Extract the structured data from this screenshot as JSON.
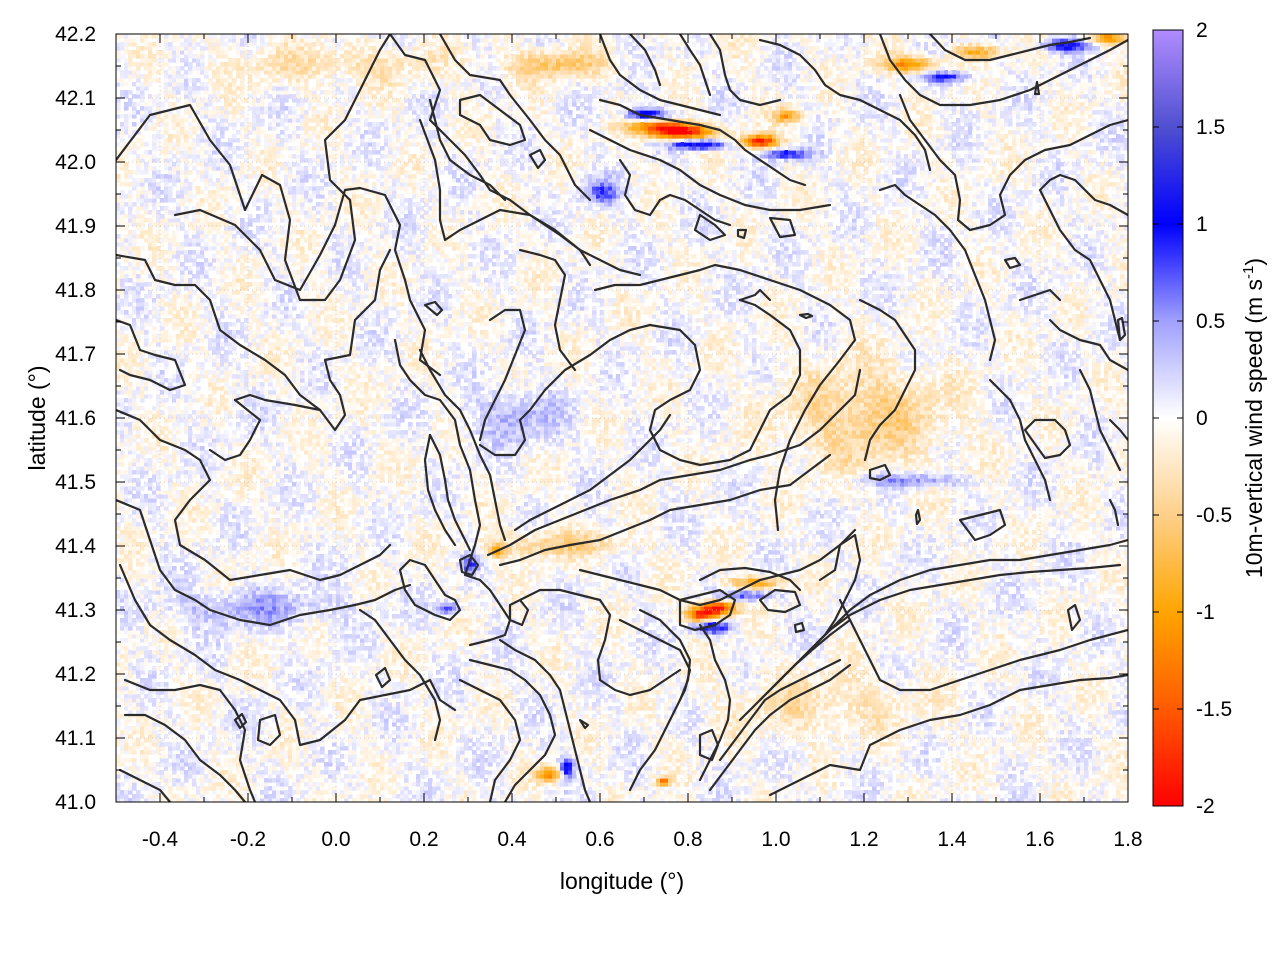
{
  "chart_data": {
    "type": "heatmap",
    "title": "",
    "xlabel": "longitude (°)",
    "ylabel": "latitude (°)",
    "colorbar_label": "10m-vertical wind speed (m s",
    "colorbar_label_sup": "-1",
    "colorbar_label_end": ")",
    "xlim": [
      -0.5,
      1.8
    ],
    "ylim": [
      41.0,
      42.2
    ],
    "clim": [
      -2,
      2
    ],
    "x_ticks": [
      -0.4,
      -0.2,
      0.0,
      0.2,
      0.4,
      0.6,
      0.8,
      1.0,
      1.2,
      1.4,
      1.6,
      1.8
    ],
    "x_tick_labels": [
      "-0.4",
      "-0.2",
      "0.0",
      "0.2",
      "0.4",
      "0.6",
      "0.8",
      "1.0",
      "1.2",
      "1.4",
      "1.6",
      "1.8"
    ],
    "y_ticks": [
      41.0,
      41.1,
      41.2,
      41.3,
      41.4,
      41.5,
      41.6,
      41.7,
      41.8,
      41.9,
      42.0,
      42.1,
      42.2
    ],
    "y_tick_labels": [
      "41.0",
      "41.1",
      "41.2",
      "41.3",
      "41.4",
      "41.5",
      "41.6",
      "41.7",
      "41.8",
      "41.9",
      "42.0",
      "42.1",
      "42.2"
    ],
    "colorbar_ticks": [
      -2,
      -1.5,
      -1,
      -0.5,
      0,
      0.5,
      1,
      1.5,
      2
    ],
    "colorbar_tick_labels": [
      "-2",
      "-1.5",
      "-1",
      "-0.5",
      "0",
      "0.5",
      "1",
      "1.5",
      "2"
    ],
    "colormap": [
      {
        "v": -2,
        "color": "#ff0000"
      },
      {
        "v": -1.5,
        "color": "#ff5a00"
      },
      {
        "v": -1,
        "color": "#ffa500"
      },
      {
        "v": -0.5,
        "color": "#ffd08a"
      },
      {
        "v": 0,
        "color": "#ffffff"
      },
      {
        "v": 0.5,
        "color": "#a0a0ff"
      },
      {
        "v": 1,
        "color": "#0000ff"
      },
      {
        "v": 1.5,
        "color": "#5050d0"
      },
      {
        "v": 2,
        "color": "#b08cff"
      }
    ],
    "grid": true,
    "hotspots": [
      {
        "lon": 0.78,
        "lat": 42.045,
        "value": -2.0,
        "rlon": 0.07,
        "rlat": 0.012
      },
      {
        "lon": 0.72,
        "lat": 42.055,
        "value": -1.2,
        "rlon": 0.06,
        "rlat": 0.012
      },
      {
        "lon": 0.96,
        "lat": 42.03,
        "value": -1.8,
        "rlon": 0.04,
        "rlat": 0.01
      },
      {
        "lon": 1.02,
        "lat": 42.07,
        "value": -1.0,
        "rlon": 0.03,
        "rlat": 0.01
      },
      {
        "lon": 0.7,
        "lat": 42.07,
        "value": 1.3,
        "rlon": 0.05,
        "rlat": 0.01
      },
      {
        "lon": 0.82,
        "lat": 42.025,
        "value": 1.4,
        "rlon": 0.06,
        "rlat": 0.008
      },
      {
        "lon": 1.02,
        "lat": 42.01,
        "value": 1.0,
        "rlon": 0.05,
        "rlat": 0.008
      },
      {
        "lon": 1.3,
        "lat": 42.15,
        "value": -1.2,
        "rlon": 0.06,
        "rlat": 0.012
      },
      {
        "lon": 1.45,
        "lat": 42.17,
        "value": -0.9,
        "rlon": 0.05,
        "rlat": 0.01
      },
      {
        "lon": 1.38,
        "lat": 42.13,
        "value": 1.0,
        "rlon": 0.05,
        "rlat": 0.008
      },
      {
        "lon": 1.65,
        "lat": 42.18,
        "value": 1.1,
        "rlon": 0.05,
        "rlat": 0.01
      },
      {
        "lon": 1.75,
        "lat": 42.19,
        "value": -1.2,
        "rlon": 0.04,
        "rlat": 0.008
      },
      {
        "lon": 0.86,
        "lat": 41.3,
        "value": -2.0,
        "rlon": 0.04,
        "rlat": 0.012
      },
      {
        "lon": 0.82,
        "lat": 41.29,
        "value": -1.4,
        "rlon": 0.03,
        "rlat": 0.01
      },
      {
        "lon": 0.85,
        "lat": 41.27,
        "value": 1.4,
        "rlon": 0.04,
        "rlat": 0.008
      },
      {
        "lon": 0.95,
        "lat": 41.34,
        "value": -0.9,
        "rlon": 0.06,
        "rlat": 0.01
      },
      {
        "lon": 0.93,
        "lat": 41.32,
        "value": 0.8,
        "rlon": 0.06,
        "rlat": 0.008
      },
      {
        "lon": 0.48,
        "lat": 41.04,
        "value": -1.1,
        "rlon": 0.03,
        "rlat": 0.012
      },
      {
        "lon": 0.52,
        "lat": 41.05,
        "value": 1.2,
        "rlon": 0.015,
        "rlat": 0.015
      },
      {
        "lon": 0.74,
        "lat": 41.03,
        "value": -1.3,
        "rlon": 0.015,
        "rlat": 0.006
      },
      {
        "lon": 0.36,
        "lat": 41.39,
        "value": -0.9,
        "rlon": 0.02,
        "rlat": 0.01
      },
      {
        "lon": 0.3,
        "lat": 41.37,
        "value": 0.9,
        "rlon": 0.015,
        "rlat": 0.015
      },
      {
        "lon": 0.25,
        "lat": 41.3,
        "value": 0.7,
        "rlon": 0.03,
        "rlat": 0.01
      },
      {
        "lon": 1.2,
        "lat": 41.6,
        "value": -0.5,
        "rlon": 0.18,
        "rlat": 0.08
      },
      {
        "lon": 1.3,
        "lat": 41.5,
        "value": 0.6,
        "rlon": 0.12,
        "rlat": 0.01
      },
      {
        "lon": 0.5,
        "lat": 41.4,
        "value": -0.5,
        "rlon": 0.15,
        "rlat": 0.02
      },
      {
        "lon": 0.5,
        "lat": 42.15,
        "value": -0.6,
        "rlon": 0.12,
        "rlat": 0.02
      },
      {
        "lon": 0.0,
        "lat": 42.15,
        "value": -0.3,
        "rlon": 0.25,
        "rlat": 0.03
      },
      {
        "lon": 0.6,
        "lat": 41.95,
        "value": 0.7,
        "rlon": 0.04,
        "rlat": 0.02
      },
      {
        "lon": 1.1,
        "lat": 41.15,
        "value": -0.3,
        "rlon": 0.2,
        "rlat": 0.05
      },
      {
        "lon": -0.2,
        "lat": 41.3,
        "value": 0.4,
        "rlon": 0.2,
        "rlat": 0.03
      },
      {
        "lon": 0.4,
        "lat": 41.6,
        "value": 0.4,
        "rlon": 0.1,
        "rlat": 0.04
      }
    ]
  }
}
